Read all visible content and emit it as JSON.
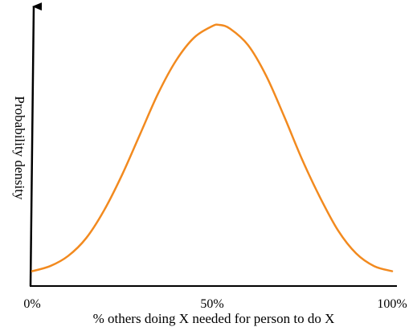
{
  "chart_data": {
    "type": "line",
    "title": "",
    "xlabel": "% others doing X needed for person to do X",
    "ylabel": "Probability density",
    "x_ticks": [
      {
        "value": 0,
        "label": "0%"
      },
      {
        "value": 50,
        "label": "50%"
      },
      {
        "value": 100,
        "label": "100%"
      }
    ],
    "xlim": [
      0,
      100
    ],
    "ylim": [
      0,
      1
    ],
    "grid": false,
    "y_ticks_shown": false,
    "series": [
      {
        "color": "#f28a1f",
        "x": [
          0,
          5,
          10,
          15,
          20,
          25,
          30,
          35,
          40,
          45,
          50,
          52,
          55,
          60,
          65,
          70,
          75,
          80,
          85,
          90,
          95,
          100
        ],
        "y": [
          0.03,
          0.05,
          0.09,
          0.16,
          0.27,
          0.41,
          0.57,
          0.73,
          0.86,
          0.95,
          0.995,
          1.0,
          0.985,
          0.92,
          0.8,
          0.64,
          0.47,
          0.32,
          0.19,
          0.1,
          0.05,
          0.03
        ]
      }
    ]
  }
}
